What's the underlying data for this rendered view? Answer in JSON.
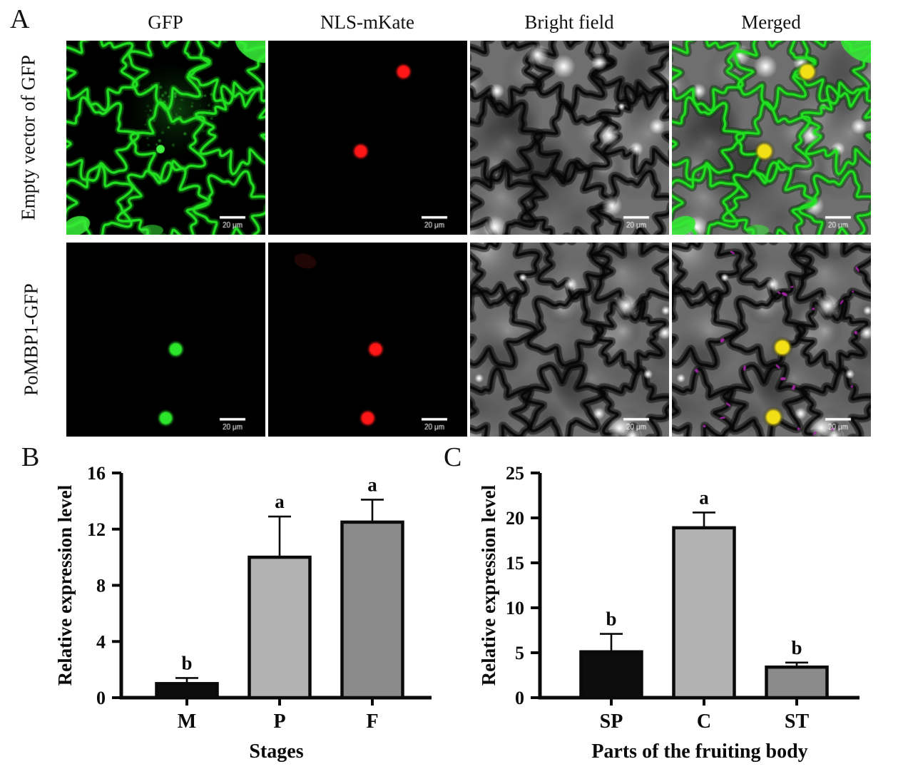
{
  "figure": {
    "panel_a": {
      "label": "A",
      "column_headers": [
        "GFP",
        "NLS-mKate",
        "Bright field",
        "Merged"
      ],
      "row_labels": [
        "Empty vector of GFP",
        "PoMBP1-GFP"
      ],
      "scale_bar_label": "20 μm",
      "colors": {
        "gfp_green": "#22e022",
        "mkate_red": "#ff1616",
        "merged_yellow": "#f2df16",
        "speck_magenta": "#b428b4",
        "brightfield_gray": "#6f6f6f"
      },
      "rows": [
        {
          "name": "empty-vector-of-gfp",
          "panels": [
            {
              "type": "green-network"
            },
            {
              "type": "dots",
              "color": "#ff1616",
              "dots": [
                [
                  0.68,
                  0.16
                ],
                [
                  0.465,
                  0.57
                ]
              ]
            },
            {
              "type": "brightfield"
            },
            {
              "type": "merged-network",
              "dot_color": "#f2df16",
              "dots": [
                [
                  0.68,
                  0.16
                ],
                [
                  0.465,
                  0.57
                ]
              ]
            }
          ]
        },
        {
          "name": "pombp1-gfp",
          "panels": [
            {
              "type": "dots",
              "color": "#2be62b",
              "dots": [
                [
                  0.55,
                  0.55
                ],
                [
                  0.5,
                  0.905
                ]
              ]
            },
            {
              "type": "dots",
              "color": "#ff1616",
              "smudge": true,
              "dots": [
                [
                  0.54,
                  0.55
                ],
                [
                  0.5,
                  0.905
                ]
              ]
            },
            {
              "type": "brightfield"
            },
            {
              "type": "merged-specks",
              "dot_color": "#f2df16",
              "speck_color": "#b428b4",
              "dots": [
                [
                  0.555,
                  0.54
                ],
                [
                  0.51,
                  0.9
                ]
              ]
            }
          ]
        }
      ]
    }
  },
  "chart_data": [
    {
      "id": "B",
      "panel_label": "B",
      "type": "bar",
      "categories": [
        "M",
        "P",
        "F"
      ],
      "values": [
        1.0,
        10.0,
        12.5
      ],
      "errors": [
        0.4,
        2.9,
        1.6
      ],
      "sig_letters": [
        "b",
        "a",
        "a"
      ],
      "bar_colors": [
        "#0d0d0d",
        "#b2b2b2",
        "#8a8a8a"
      ],
      "title": "",
      "xlabel": "Stages",
      "ylabel": "Relative expression level",
      "ylim": [
        0,
        16
      ],
      "yticks": [
        0,
        4,
        8,
        12,
        16
      ],
      "grid": false,
      "legend": null
    },
    {
      "id": "C",
      "panel_label": "C",
      "type": "bar",
      "categories": [
        "SP",
        "C",
        "ST"
      ],
      "values": [
        5.1,
        18.9,
        3.4
      ],
      "errors": [
        2.0,
        1.7,
        0.5
      ],
      "sig_letters": [
        "b",
        "a",
        "b"
      ],
      "bar_colors": [
        "#0d0d0d",
        "#b2b2b2",
        "#8a8a8a"
      ],
      "title": "",
      "xlabel": "Parts of the fruiting body",
      "ylabel": "Relative expression level",
      "ylim": [
        0,
        25
      ],
      "yticks": [
        0,
        5,
        10,
        15,
        20,
        25
      ],
      "grid": false,
      "legend": null
    }
  ]
}
